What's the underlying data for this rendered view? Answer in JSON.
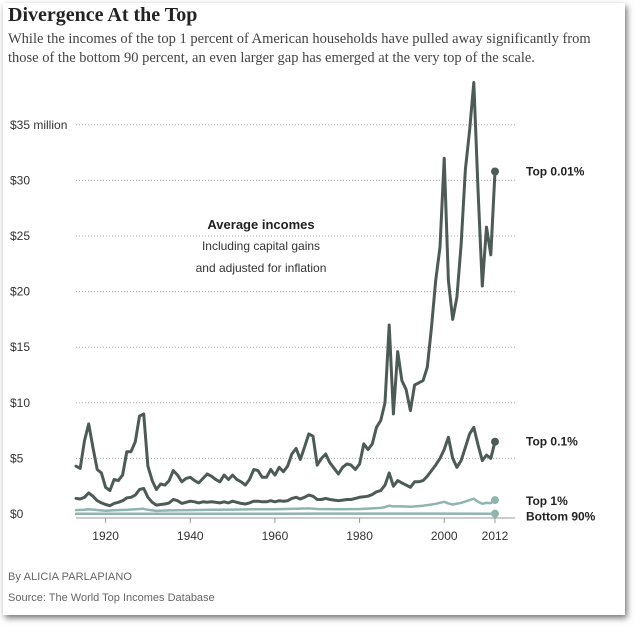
{
  "header": {
    "title": "Divergence At the Top",
    "subtitle": "While the incomes of the top 1 percent of American households have pulled away significantly from those of the bottom 90 percent, an even larger gap has emerged at the very top of the scale."
  },
  "footer": {
    "byline": "By ALICIA PARLAPIANO",
    "source": "Source: The World Top Incomes Database"
  },
  "chart_data": {
    "type": "line",
    "title": "Average incomes",
    "annotation": [
      "Including capital gains",
      "and adjusted for inflation"
    ],
    "xlabel": "",
    "ylabel": "",
    "ylim": [
      0,
      39
    ],
    "xlim": [
      1913,
      2012
    ],
    "y_ticks": [
      {
        "value": 0,
        "label": "$0"
      },
      {
        "value": 5,
        "label": "$5"
      },
      {
        "value": 10,
        "label": "$10"
      },
      {
        "value": 15,
        "label": "$15"
      },
      {
        "value": 20,
        "label": "$20"
      },
      {
        "value": 25,
        "label": "$25"
      },
      {
        "value": 30,
        "label": "$30"
      },
      {
        "value": 35,
        "label": "$35 million"
      }
    ],
    "x_ticks": [
      {
        "value": 1920,
        "label": "1920"
      },
      {
        "value": 1940,
        "label": "1940"
      },
      {
        "value": 1960,
        "label": "1960"
      },
      {
        "value": 1980,
        "label": "1980"
      },
      {
        "value": 2000,
        "label": "2000"
      },
      {
        "value": 2012,
        "label": "2012"
      }
    ],
    "units": "millions of dollars",
    "series": [
      {
        "name": "Top 0.01%",
        "color": "#4d5b57",
        "width": 3,
        "points": [
          [
            1913,
            4.3
          ],
          [
            1914,
            4.1
          ],
          [
            1915,
            6.6
          ],
          [
            1916,
            8.1
          ],
          [
            1917,
            6.0
          ],
          [
            1918,
            4.0
          ],
          [
            1919,
            3.7
          ],
          [
            1920,
            2.4
          ],
          [
            1921,
            2.1
          ],
          [
            1922,
            3.1
          ],
          [
            1923,
            3.0
          ],
          [
            1924,
            3.5
          ],
          [
            1925,
            5.6
          ],
          [
            1926,
            5.6
          ],
          [
            1927,
            6.5
          ],
          [
            1928,
            8.8
          ],
          [
            1929,
            9.0
          ],
          [
            1930,
            4.3
          ],
          [
            1931,
            3.0
          ],
          [
            1932,
            2.2
          ],
          [
            1933,
            2.7
          ],
          [
            1934,
            2.6
          ],
          [
            1935,
            3.0
          ],
          [
            1936,
            3.9
          ],
          [
            1937,
            3.5
          ],
          [
            1938,
            2.9
          ],
          [
            1939,
            3.2
          ],
          [
            1940,
            3.3
          ],
          [
            1941,
            3.0
          ],
          [
            1942,
            2.8
          ],
          [
            1943,
            3.2
          ],
          [
            1944,
            3.6
          ],
          [
            1945,
            3.4
          ],
          [
            1946,
            3.1
          ],
          [
            1947,
            2.9
          ],
          [
            1948,
            3.5
          ],
          [
            1949,
            3.1
          ],
          [
            1950,
            3.5
          ],
          [
            1951,
            3.1
          ],
          [
            1952,
            2.9
          ],
          [
            1953,
            2.6
          ],
          [
            1954,
            3.1
          ],
          [
            1955,
            4.0
          ],
          [
            1956,
            3.9
          ],
          [
            1957,
            3.3
          ],
          [
            1958,
            3.3
          ],
          [
            1959,
            4.0
          ],
          [
            1960,
            3.5
          ],
          [
            1961,
            4.2
          ],
          [
            1962,
            3.8
          ],
          [
            1963,
            4.3
          ],
          [
            1964,
            5.4
          ],
          [
            1965,
            5.9
          ],
          [
            1966,
            4.9
          ],
          [
            1967,
            6.0
          ],
          [
            1968,
            7.2
          ],
          [
            1969,
            7.0
          ],
          [
            1970,
            4.4
          ],
          [
            1971,
            5.0
          ],
          [
            1972,
            5.4
          ],
          [
            1973,
            4.6
          ],
          [
            1974,
            4.1
          ],
          [
            1975,
            3.6
          ],
          [
            1976,
            4.2
          ],
          [
            1977,
            4.5
          ],
          [
            1978,
            4.4
          ],
          [
            1979,
            4.0
          ],
          [
            1980,
            4.5
          ],
          [
            1981,
            6.3
          ],
          [
            1982,
            5.8
          ],
          [
            1983,
            6.3
          ],
          [
            1984,
            7.8
          ],
          [
            1985,
            8.4
          ],
          [
            1986,
            10.0
          ],
          [
            1987,
            17.0
          ],
          [
            1988,
            9.0
          ],
          [
            1989,
            14.6
          ],
          [
            1990,
            12.0
          ],
          [
            1991,
            11.2
          ],
          [
            1992,
            9.3
          ],
          [
            1993,
            11.6
          ],
          [
            1994,
            11.8
          ],
          [
            1995,
            12.0
          ],
          [
            1996,
            13.2
          ],
          [
            1997,
            16.8
          ],
          [
            1998,
            21.0
          ],
          [
            1999,
            24.0
          ],
          [
            2000,
            32.0
          ],
          [
            2001,
            21.0
          ],
          [
            2002,
            17.5
          ],
          [
            2003,
            19.5
          ],
          [
            2004,
            24.2
          ],
          [
            2005,
            31.0
          ],
          [
            2006,
            34.5
          ],
          [
            2007,
            38.8
          ],
          [
            2008,
            29.0
          ],
          [
            2009,
            20.5
          ],
          [
            2010,
            25.8
          ],
          [
            2011,
            23.3
          ],
          [
            2012,
            30.8
          ]
        ]
      },
      {
        "name": "Top 0.1%",
        "color": "#4d5b57",
        "width": 3,
        "points": [
          [
            1913,
            1.4
          ],
          [
            1914,
            1.35
          ],
          [
            1915,
            1.5
          ],
          [
            1916,
            1.9
          ],
          [
            1917,
            1.6
          ],
          [
            1918,
            1.2
          ],
          [
            1919,
            1.0
          ],
          [
            1920,
            0.85
          ],
          [
            1921,
            0.75
          ],
          [
            1922,
            0.95
          ],
          [
            1923,
            1.05
          ],
          [
            1924,
            1.2
          ],
          [
            1925,
            1.45
          ],
          [
            1926,
            1.5
          ],
          [
            1927,
            1.7
          ],
          [
            1928,
            2.2
          ],
          [
            1929,
            2.3
          ],
          [
            1930,
            1.5
          ],
          [
            1931,
            1.05
          ],
          [
            1932,
            0.8
          ],
          [
            1933,
            0.85
          ],
          [
            1934,
            0.9
          ],
          [
            1935,
            1.0
          ],
          [
            1936,
            1.3
          ],
          [
            1937,
            1.2
          ],
          [
            1938,
            0.95
          ],
          [
            1939,
            1.05
          ],
          [
            1940,
            1.15
          ],
          [
            1941,
            1.1
          ],
          [
            1942,
            1.0
          ],
          [
            1943,
            1.1
          ],
          [
            1944,
            1.05
          ],
          [
            1945,
            1.1
          ],
          [
            1946,
            1.05
          ],
          [
            1947,
            1.0
          ],
          [
            1948,
            1.1
          ],
          [
            1949,
            1.0
          ],
          [
            1950,
            1.15
          ],
          [
            1951,
            1.05
          ],
          [
            1952,
            0.95
          ],
          [
            1953,
            0.9
          ],
          [
            1954,
            1.0
          ],
          [
            1955,
            1.15
          ],
          [
            1956,
            1.15
          ],
          [
            1957,
            1.1
          ],
          [
            1958,
            1.1
          ],
          [
            1959,
            1.2
          ],
          [
            1960,
            1.1
          ],
          [
            1961,
            1.2
          ],
          [
            1962,
            1.15
          ],
          [
            1963,
            1.2
          ],
          [
            1964,
            1.4
          ],
          [
            1965,
            1.5
          ],
          [
            1966,
            1.35
          ],
          [
            1967,
            1.5
          ],
          [
            1968,
            1.7
          ],
          [
            1969,
            1.6
          ],
          [
            1970,
            1.3
          ],
          [
            1971,
            1.3
          ],
          [
            1972,
            1.4
          ],
          [
            1973,
            1.3
          ],
          [
            1974,
            1.25
          ],
          [
            1975,
            1.2
          ],
          [
            1976,
            1.25
          ],
          [
            1977,
            1.3
          ],
          [
            1978,
            1.3
          ],
          [
            1979,
            1.4
          ],
          [
            1980,
            1.5
          ],
          [
            1981,
            1.55
          ],
          [
            1982,
            1.6
          ],
          [
            1983,
            1.75
          ],
          [
            1984,
            2.0
          ],
          [
            1985,
            2.1
          ],
          [
            1986,
            2.6
          ],
          [
            1987,
            3.7
          ],
          [
            1988,
            2.5
          ],
          [
            1989,
            3.0
          ],
          [
            1990,
            2.8
          ],
          [
            1991,
            2.6
          ],
          [
            1992,
            2.4
          ],
          [
            1993,
            2.9
          ],
          [
            1994,
            2.9
          ],
          [
            1995,
            3.0
          ],
          [
            1996,
            3.4
          ],
          [
            1997,
            3.9
          ],
          [
            1998,
            4.4
          ],
          [
            1999,
            5.0
          ],
          [
            2000,
            5.8
          ],
          [
            2001,
            6.9
          ],
          [
            2002,
            5.0
          ],
          [
            2003,
            4.2
          ],
          [
            2004,
            4.8
          ],
          [
            2005,
            6.0
          ],
          [
            2006,
            7.2
          ],
          [
            2007,
            7.8
          ],
          [
            2008,
            6.2
          ],
          [
            2009,
            4.8
          ],
          [
            2010,
            5.3
          ],
          [
            2011,
            5.0
          ],
          [
            2012,
            6.5
          ]
        ]
      },
      {
        "name": "Top 1%",
        "color": "#8fb5ae",
        "width": 2.5,
        "points": [
          [
            1913,
            0.35
          ],
          [
            1915,
            0.38
          ],
          [
            1916,
            0.42
          ],
          [
            1918,
            0.36
          ],
          [
            1920,
            0.3
          ],
          [
            1922,
            0.33
          ],
          [
            1925,
            0.38
          ],
          [
            1928,
            0.45
          ],
          [
            1929,
            0.47
          ],
          [
            1930,
            0.38
          ],
          [
            1932,
            0.28
          ],
          [
            1935,
            0.32
          ],
          [
            1940,
            0.35
          ],
          [
            1945,
            0.38
          ],
          [
            1950,
            0.4
          ],
          [
            1955,
            0.42
          ],
          [
            1960,
            0.42
          ],
          [
            1965,
            0.48
          ],
          [
            1968,
            0.5
          ],
          [
            1970,
            0.45
          ],
          [
            1975,
            0.43
          ],
          [
            1980,
            0.45
          ],
          [
            1983,
            0.5
          ],
          [
            1985,
            0.55
          ],
          [
            1986,
            0.62
          ],
          [
            1987,
            0.75
          ],
          [
            1988,
            0.68
          ],
          [
            1990,
            0.68
          ],
          [
            1992,
            0.66
          ],
          [
            1995,
            0.75
          ],
          [
            1997,
            0.85
          ],
          [
            1998,
            0.92
          ],
          [
            2000,
            1.1
          ],
          [
            2001,
            0.95
          ],
          [
            2002,
            0.85
          ],
          [
            2004,
            1.0
          ],
          [
            2006,
            1.25
          ],
          [
            2007,
            1.38
          ],
          [
            2008,
            1.1
          ],
          [
            2009,
            0.92
          ],
          [
            2010,
            1.0
          ],
          [
            2011,
            0.98
          ],
          [
            2012,
            1.25
          ]
        ]
      },
      {
        "name": "Bottom 90%",
        "color": "#8fb5ae",
        "width": 2.5,
        "points": [
          [
            1913,
            0.02
          ],
          [
            1920,
            0.02
          ],
          [
            1930,
            0.02
          ],
          [
            1940,
            0.02
          ],
          [
            1950,
            0.03
          ],
          [
            1960,
            0.03
          ],
          [
            1970,
            0.04
          ],
          [
            1980,
            0.04
          ],
          [
            1990,
            0.04
          ],
          [
            2000,
            0.04
          ],
          [
            2012,
            0.03
          ]
        ]
      }
    ]
  }
}
